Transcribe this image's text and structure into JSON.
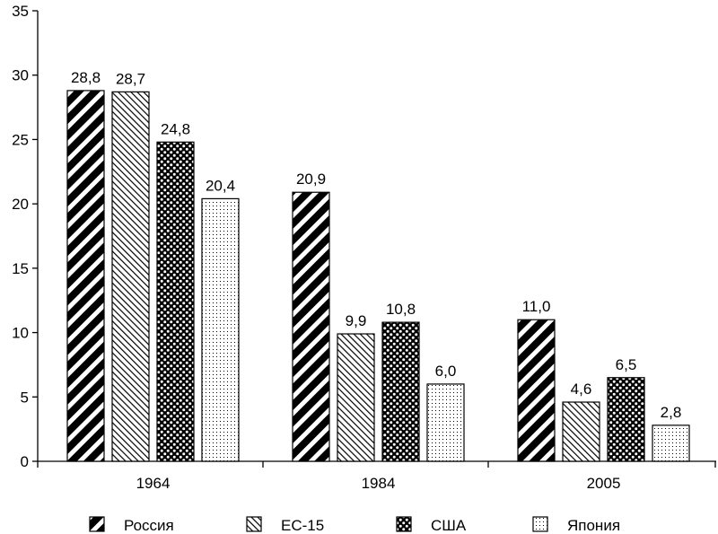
{
  "chart_data": {
    "type": "bar",
    "categories": [
      "1964",
      "1984",
      "2005"
    ],
    "series": [
      {
        "name": "Россия",
        "values": [
          28.8,
          20.9,
          11.0
        ],
        "labels": [
          "28,8",
          "20,9",
          "11,0"
        ],
        "pattern": "thick-diagonal"
      },
      {
        "name": "ЕС-15",
        "values": [
          28.7,
          9.9,
          4.6
        ],
        "labels": [
          "28,7",
          "9,9",
          "4,6"
        ],
        "pattern": "thin-diagonal"
      },
      {
        "name": "США",
        "values": [
          24.8,
          10.8,
          6.5
        ],
        "labels": [
          "24,8",
          "10,8",
          "6,5"
        ],
        "pattern": "checker-dots"
      },
      {
        "name": "Япония",
        "values": [
          20.4,
          6.0,
          2.8
        ],
        "labels": [
          "20,4",
          "6,0",
          "2,8"
        ],
        "pattern": "fine-dots"
      }
    ],
    "yticks": [
      "0",
      "5",
      "10",
      "15",
      "20",
      "25",
      "30",
      "35"
    ],
    "ylim": [
      0,
      35
    ],
    "grid": false,
    "legend_position": "bottom",
    "colors": {
      "ink": "#000000",
      "background": "#ffffff"
    }
  }
}
